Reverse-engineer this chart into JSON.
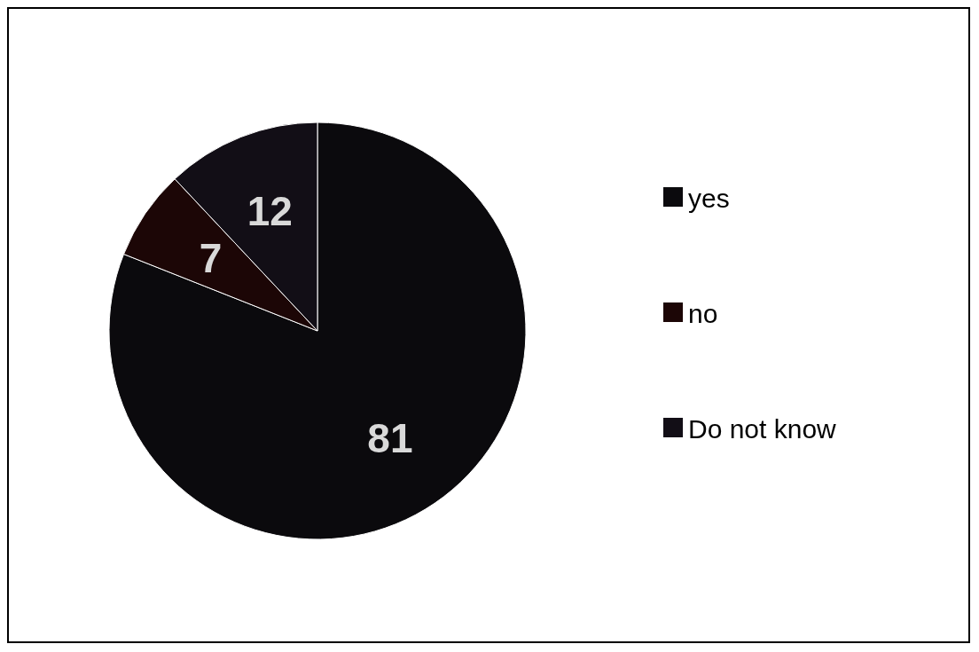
{
  "chart_data": {
    "type": "pie",
    "categories": [
      "yes",
      "no",
      "Do not know"
    ],
    "values": [
      81,
      7,
      12
    ],
    "colors": [
      "#0b0a0d",
      "#1c0606",
      "#120e16"
    ],
    "data_labels": true,
    "legend": "right"
  }
}
